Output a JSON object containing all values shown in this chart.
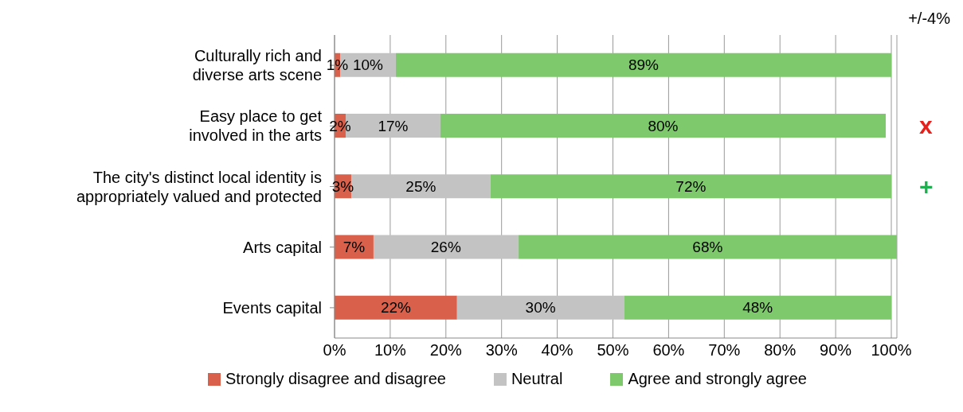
{
  "chart_data": {
    "type": "bar",
    "orientation": "horizontal",
    "stacked": true,
    "categories": [
      "Culturally rich and diverse arts scene",
      "Easy place to get involved in the arts",
      "The city's distinct local identity is appropriately valued and protected",
      "Arts capital",
      "Events capital"
    ],
    "series": [
      {
        "name": "Strongly disagree and disagree",
        "color": "#d9604a",
        "values": [
          1,
          2,
          3,
          7,
          22
        ]
      },
      {
        "name": "Neutral",
        "color": "#c3c3c3",
        "values": [
          10,
          17,
          25,
          26,
          30
        ]
      },
      {
        "name": "Agree and strongly agree",
        "color": "#7dc96b",
        "values": [
          89,
          80,
          72,
          68,
          48
        ]
      }
    ],
    "xlim": [
      0,
      101
    ],
    "xticks": [
      {
        "value": 0,
        "label": "0%"
      },
      {
        "value": 10,
        "label": "10%"
      },
      {
        "value": 20,
        "label": "20%"
      },
      {
        "value": 30,
        "label": "30%"
      },
      {
        "value": 40,
        "label": "40%"
      },
      {
        "value": 50,
        "label": "50%"
      },
      {
        "value": 60,
        "label": "60%"
      },
      {
        "value": 70,
        "label": "70%"
      },
      {
        "value": 80,
        "label": "80%"
      },
      {
        "value": 90,
        "label": "90%"
      },
      {
        "value": 100,
        "label": "100%"
      }
    ],
    "value_labels": [
      [
        "1%",
        "2%",
        "3%",
        "7%",
        "22%"
      ],
      [
        "10%",
        "17%",
        "25%",
        "26%",
        "30%"
      ],
      [
        "89%",
        "80%",
        "72%",
        "68%",
        "48%"
      ]
    ],
    "grid": "x",
    "legend": "bottom",
    "annotations": [
      "+/-4%",
      "x",
      "+"
    ]
  }
}
